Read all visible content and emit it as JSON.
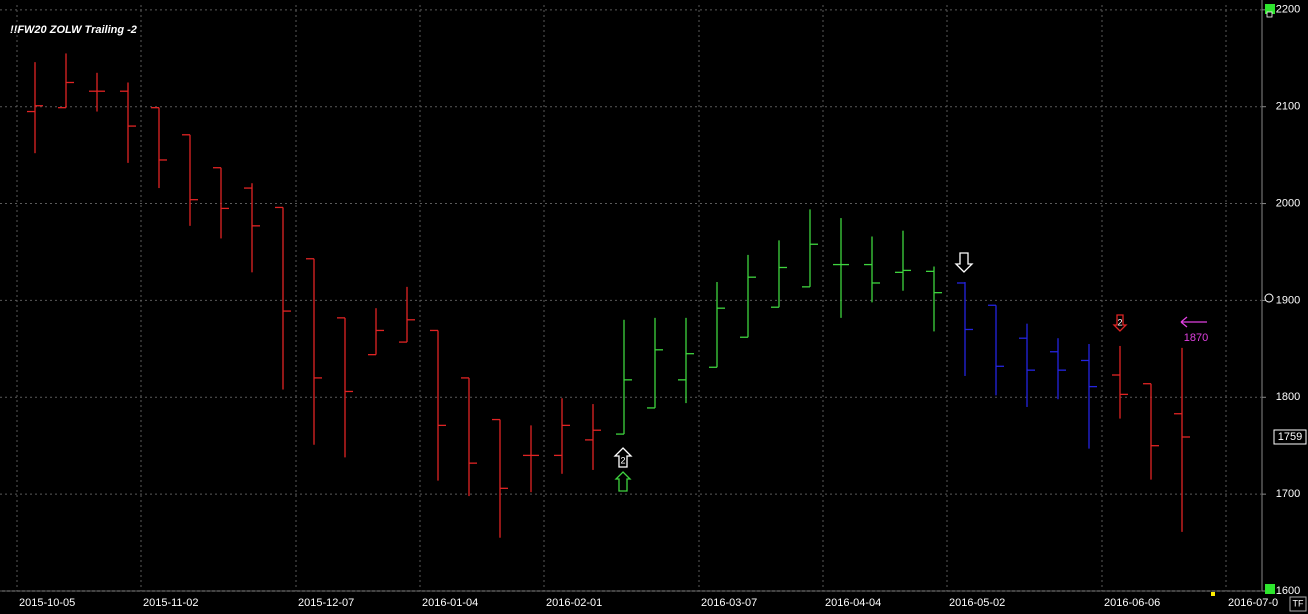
{
  "chart_data": {
    "type": "ohlc",
    "title": "!!FW20 ZOLW Trailing -2",
    "categories": [
      "2015-10-05",
      null,
      null,
      null,
      "2015-11-02",
      null,
      null,
      null,
      null,
      "2015-12-07",
      null,
      null,
      null,
      "2016-01-04",
      null,
      null,
      null,
      "2016-02-01",
      null,
      null,
      null,
      null,
      "2016-03-07",
      null,
      null,
      null,
      "2016-04-04",
      null,
      null,
      null,
      "2016-05-02",
      null,
      null,
      null,
      null,
      "2016-06-06",
      null,
      null,
      null,
      "2016-07-0"
    ],
    "open": [
      2095,
      2099,
      2116,
      2116,
      2099,
      2071,
      2037,
      2016,
      1996,
      1943,
      1882,
      1844,
      1857,
      1869,
      1820,
      1777,
      1740,
      1740,
      1756,
      1762,
      1789,
      1818,
      1831,
      1862,
      1893,
      1914,
      1937,
      1937,
      1929,
      1930,
      1918,
      1895,
      1861,
      1847,
      1838,
      1823,
      1814,
      1783,
      null,
      null
    ],
    "high": [
      2146,
      2155,
      2135,
      2125,
      2099,
      2071,
      2037,
      2021,
      1996,
      1943,
      1882,
      1892,
      1914,
      1869,
      1820,
      1777,
      1771,
      1799,
      1793,
      1880,
      1882,
      1882,
      1919,
      1947,
      1962,
      1994,
      1985,
      1966,
      1972,
      1935,
      1919,
      1895,
      1876,
      1861,
      1855,
      1853,
      1814,
      1851,
      null,
      null
    ],
    "low": [
      2052,
      2099,
      2095,
      2042,
      2016,
      1977,
      1964,
      1929,
      1808,
      1751,
      1738,
      1844,
      1857,
      1714,
      1698,
      1655,
      1702,
      1721,
      1725,
      1762,
      1789,
      1794,
      1831,
      1862,
      1893,
      1914,
      1882,
      1898,
      1910,
      1868,
      1822,
      1802,
      1790,
      1798,
      1747,
      1778,
      1715,
      1661,
      null,
      null
    ],
    "close": [
      2101,
      2125,
      2116,
      2080,
      2045,
      2004,
      1995,
      1977,
      1889,
      1820,
      1806,
      1869,
      1880,
      1771,
      1732,
      1706,
      1740,
      1771,
      1766,
      1818,
      1849,
      1845,
      1892,
      1924,
      1934,
      1958,
      1937,
      1918,
      1931,
      1908,
      1870,
      1832,
      1828,
      1828,
      1811,
      1803,
      1750,
      1759,
      null,
      null
    ],
    "bar_colors": [
      "#e02424",
      "#e02424",
      "#e02424",
      "#e02424",
      "#e02424",
      "#e02424",
      "#e02424",
      "#e02424",
      "#e02424",
      "#e02424",
      "#e02424",
      "#e02424",
      "#e02424",
      "#e02424",
      "#e02424",
      "#e02424",
      "#e02424",
      "#e02424",
      "#e02424",
      "#3fd43f",
      "#3fd43f",
      "#3fd43f",
      "#3fd43f",
      "#3fd43f",
      "#3fd43f",
      "#3fd43f",
      "#3fd43f",
      "#3fd43f",
      "#3fd43f",
      "#3fd43f",
      "#2424e0",
      "#2424e0",
      "#2424e0",
      "#2424e0",
      "#2424e0",
      "#e02424",
      "#e02424",
      "#e02424",
      null,
      null
    ],
    "ylim": [
      1600,
      2205
    ],
    "yticks": [
      1600,
      1700,
      1800,
      1900,
      2000,
      2100,
      2200
    ],
    "grid": true,
    "last_price": 1759,
    "annotations": [
      "2",
      "2",
      "1870",
      "TF"
    ]
  }
}
